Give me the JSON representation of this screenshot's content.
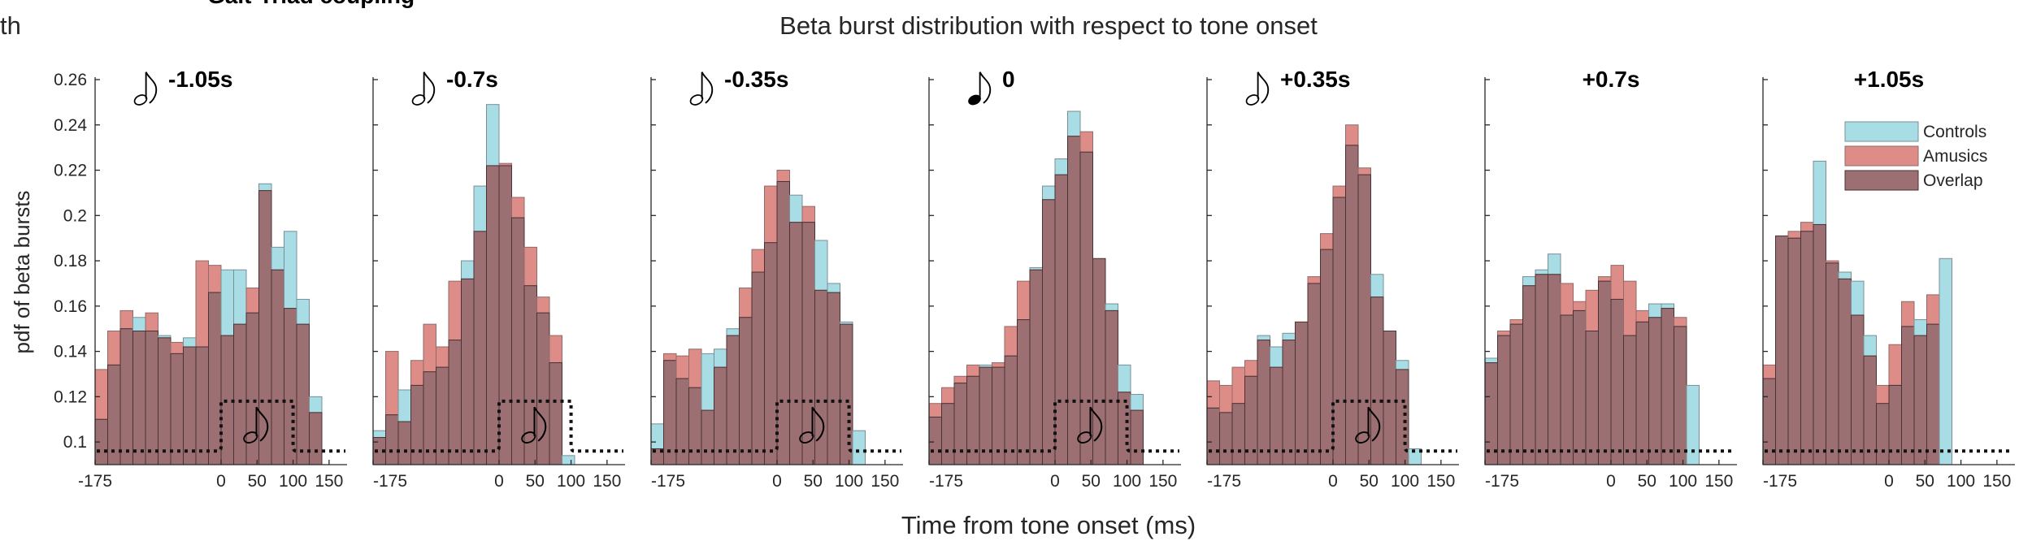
{
  "partial_text": {
    "left": "th",
    "top": "Gait-Triad coupling"
  },
  "chart_data": {
    "type": "bar",
    "title": "Beta burst distribution with respect to tone onset",
    "xlabel": "Time from tone onset (ms)",
    "ylabel": "pdf of beta bursts",
    "ylim": [
      0.09,
      0.26
    ],
    "xlim": [
      -175,
      175
    ],
    "yticks": [
      "0.1",
      "0.12",
      "0.14",
      "0.16",
      "0.18",
      "0.2",
      "0.22",
      "0.24",
      "0.26"
    ],
    "xticks": [
      "-175",
      "0",
      "50",
      "100",
      "150"
    ],
    "bin_width_ms": 17.5,
    "bin_starts_ms": [
      -175,
      -157.5,
      -140,
      -122.5,
      -105,
      -87.5,
      -70,
      -52.5,
      -35,
      -17.5,
      0,
      17.5,
      35,
      52.5,
      70,
      87.5,
      105,
      122.5,
      140,
      157.5
    ],
    "legend": {
      "position": "top-right",
      "entries": [
        "Controls",
        "Amusics",
        "Overlap"
      ]
    },
    "colors": {
      "controls": "#a8dde6",
      "amusics": "#de8c88",
      "overlap": "#9c6f72",
      "tone_envelope": "#111111"
    },
    "tone_envelope_shown_in": [
      0,
      1,
      2,
      3,
      4
    ],
    "panels": [
      {
        "label": "-1.05s",
        "note": "hollow",
        "controls": [
          0.11,
          0.134,
          0.15,
          0.155,
          0.149,
          0.147,
          0.139,
          0.146,
          0.142,
          0.166,
          0.176,
          0.176,
          0.157,
          0.214,
          0.186,
          0.193,
          0.163,
          0.12,
          null,
          null
        ],
        "amusics": [
          0.132,
          0.149,
          0.158,
          0.149,
          0.157,
          0.146,
          0.144,
          0.142,
          0.18,
          0.178,
          0.147,
          0.152,
          0.168,
          0.211,
          0.176,
          0.159,
          0.152,
          0.113,
          null,
          null
        ]
      },
      {
        "label": "-0.7s",
        "note": "hollow",
        "controls": [
          0.105,
          0.112,
          0.123,
          0.125,
          0.131,
          0.133,
          0.145,
          0.18,
          0.213,
          0.249,
          0.222,
          0.199,
          0.169,
          0.157,
          0.135,
          0.094,
          null,
          null,
          null,
          null
        ],
        "amusics": [
          0.102,
          0.14,
          0.109,
          0.136,
          0.152,
          0.142,
          0.171,
          0.172,
          0.193,
          0.222,
          0.223,
          0.208,
          0.186,
          0.164,
          0.147,
          null,
          null,
          null,
          null,
          null
        ]
      },
      {
        "label": "-0.35s",
        "note": "hollow",
        "controls": [
          0.108,
          0.136,
          0.128,
          0.124,
          0.139,
          0.141,
          0.15,
          0.155,
          0.175,
          0.188,
          0.215,
          0.209,
          0.197,
          0.189,
          0.17,
          0.153,
          0.105,
          null,
          null,
          null
        ],
        "amusics": [
          0.097,
          0.139,
          0.138,
          0.141,
          0.114,
          0.133,
          0.147,
          0.168,
          0.185,
          0.213,
          0.22,
          0.197,
          0.204,
          0.167,
          0.166,
          0.152,
          null,
          null,
          null,
          null
        ]
      },
      {
        "label": "0",
        "note": "filled",
        "controls": [
          0.111,
          0.117,
          0.126,
          0.129,
          0.134,
          0.133,
          0.138,
          0.154,
          0.177,
          0.213,
          0.225,
          0.246,
          0.228,
          0.181,
          0.161,
          0.134,
          0.121,
          null,
          null,
          null
        ],
        "amusics": [
          0.117,
          0.124,
          0.129,
          0.134,
          0.133,
          0.135,
          0.151,
          0.171,
          0.176,
          0.207,
          0.218,
          0.235,
          0.237,
          0.181,
          0.158,
          0.122,
          0.114,
          null,
          null,
          null
        ]
      },
      {
        "label": "+0.35s",
        "note": "hollow",
        "controls": [
          0.115,
          0.113,
          0.117,
          0.129,
          0.147,
          0.142,
          0.148,
          0.153,
          0.17,
          0.185,
          0.208,
          0.231,
          0.218,
          0.174,
          0.149,
          0.136,
          0.097,
          null,
          null,
          null
        ],
        "amusics": [
          0.127,
          0.125,
          0.133,
          0.136,
          0.145,
          0.133,
          0.145,
          0.153,
          0.173,
          0.192,
          0.213,
          0.24,
          0.221,
          0.164,
          0.149,
          0.132,
          null,
          null,
          null,
          null
        ]
      },
      {
        "label": "+0.7s",
        "note": "none",
        "controls": [
          0.137,
          0.147,
          0.152,
          0.173,
          0.176,
          0.183,
          0.156,
          0.158,
          0.149,
          0.171,
          0.163,
          0.147,
          0.153,
          0.161,
          0.161,
          0.151,
          0.125,
          null,
          null,
          null
        ],
        "amusics": [
          0.135,
          0.149,
          0.154,
          0.169,
          0.174,
          0.174,
          0.17,
          0.162,
          0.167,
          0.173,
          0.178,
          0.171,
          0.158,
          0.155,
          0.159,
          0.155,
          null,
          null,
          null,
          null
        ]
      },
      {
        "label": "+1.05s",
        "note": "none",
        "controls": [
          0.128,
          0.191,
          0.19,
          0.193,
          0.224,
          0.179,
          0.175,
          0.171,
          0.147,
          0.117,
          0.125,
          0.151,
          0.154,
          0.152,
          0.181,
          null,
          null,
          null,
          null,
          null
        ],
        "amusics": [
          0.134,
          0.191,
          0.193,
          0.197,
          0.196,
          0.18,
          0.172,
          0.156,
          0.138,
          0.125,
          0.143,
          0.162,
          0.147,
          0.165,
          null,
          null,
          null,
          null,
          null,
          null
        ]
      }
    ]
  }
}
